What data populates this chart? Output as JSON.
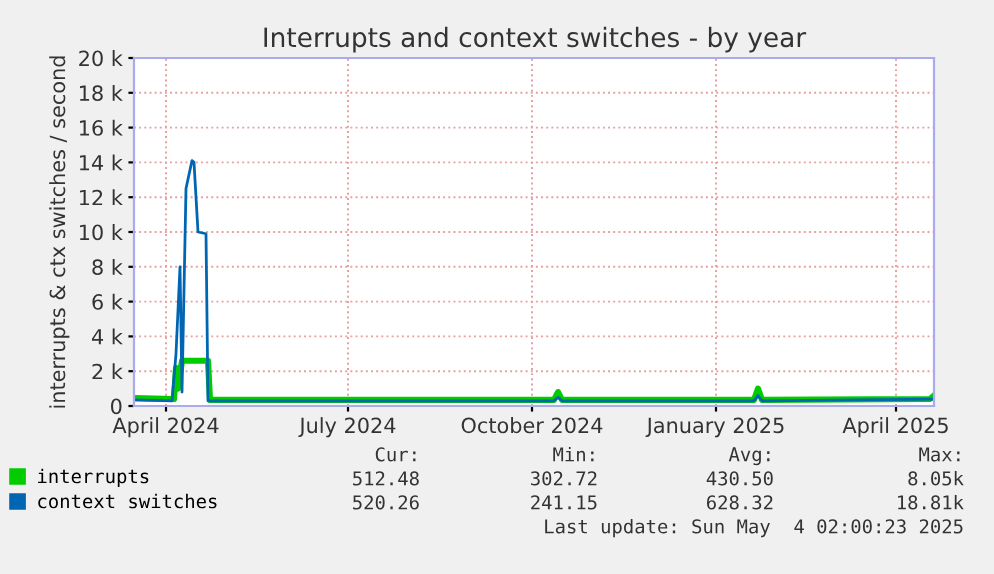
{
  "chart_data": {
    "type": "line",
    "title": "Interrupts and context switches - by year",
    "ylabel": "interrupts & ctx switches / second",
    "xlim": [
      "2024-03-16",
      "2025-04-20"
    ],
    "xticks": [
      {
        "value": "2024-04-01",
        "label": "April 2024"
      },
      {
        "value": "2024-07-01",
        "label": "July 2024"
      },
      {
        "value": "2024-10-01",
        "label": "October 2024"
      },
      {
        "value": "2025-01-01",
        "label": "January 2025"
      },
      {
        "value": "2025-04-01",
        "label": "April 2025"
      }
    ],
    "ylim": [
      0,
      20000
    ],
    "yticks": [
      0,
      {
        "value": 2000,
        "label": "2 k"
      },
      {
        "value": 4000,
        "label": "4 k"
      },
      {
        "value": 6000,
        "label": "6 k"
      },
      {
        "value": 8000,
        "label": "8 k"
      },
      {
        "value": 10000,
        "label": "10 k"
      },
      {
        "value": 12000,
        "label": "12 k"
      },
      {
        "value": 14000,
        "label": "14 k"
      },
      {
        "value": 16000,
        "label": "16 k"
      },
      {
        "value": 18000,
        "label": "18 k"
      },
      {
        "value": 20000,
        "label": "20 k"
      }
    ],
    "grid": true,
    "legend": "bottom",
    "series": [
      {
        "name": "interrupts",
        "color": "#00cc00",
        "x": [
          "2024-03-16",
          "2024-04-05",
          "2024-04-06",
          "2024-04-07",
          "2024-04-09",
          "2024-04-12",
          "2024-04-22",
          "2024-04-23",
          "2024-07-01",
          "2024-10-12",
          "2024-10-14",
          "2024-10-16",
          "2025-01-20",
          "2025-01-22",
          "2025-01-24",
          "2025-04-18",
          "2025-04-20"
        ],
        "values": [
          450,
          400,
          2200,
          1000,
          2600,
          2600,
          2600,
          350,
          350,
          350,
          800,
          350,
          350,
          1000,
          350,
          400,
          600
        ]
      },
      {
        "name": "context switches",
        "color": "#0066b3",
        "x": [
          "2024-03-16",
          "2024-04-04",
          "2024-04-06",
          "2024-04-08",
          "2024-04-09",
          "2024-04-11",
          "2024-04-14",
          "2024-04-15",
          "2024-04-17",
          "2024-04-21",
          "2024-04-22",
          "2024-07-01",
          "2024-10-12",
          "2024-10-14",
          "2024-10-16",
          "2025-01-20",
          "2025-01-22",
          "2025-01-24",
          "2025-04-20"
        ],
        "values": [
          350,
          300,
          3000,
          8000,
          800,
          12500,
          14100,
          14000,
          10000,
          9900,
          300,
          300,
          300,
          500,
          300,
          300,
          600,
          300,
          400
        ]
      }
    ],
    "annotations": [
      "Cur:",
      "Min:",
      "Avg:",
      "Max:",
      "512.48",
      "302.72",
      "430.50",
      "8.05k",
      "520.26",
      "241.15",
      "628.32",
      "18.81k",
      "Last update: Sun May  4 02:00:23 2025"
    ]
  }
}
